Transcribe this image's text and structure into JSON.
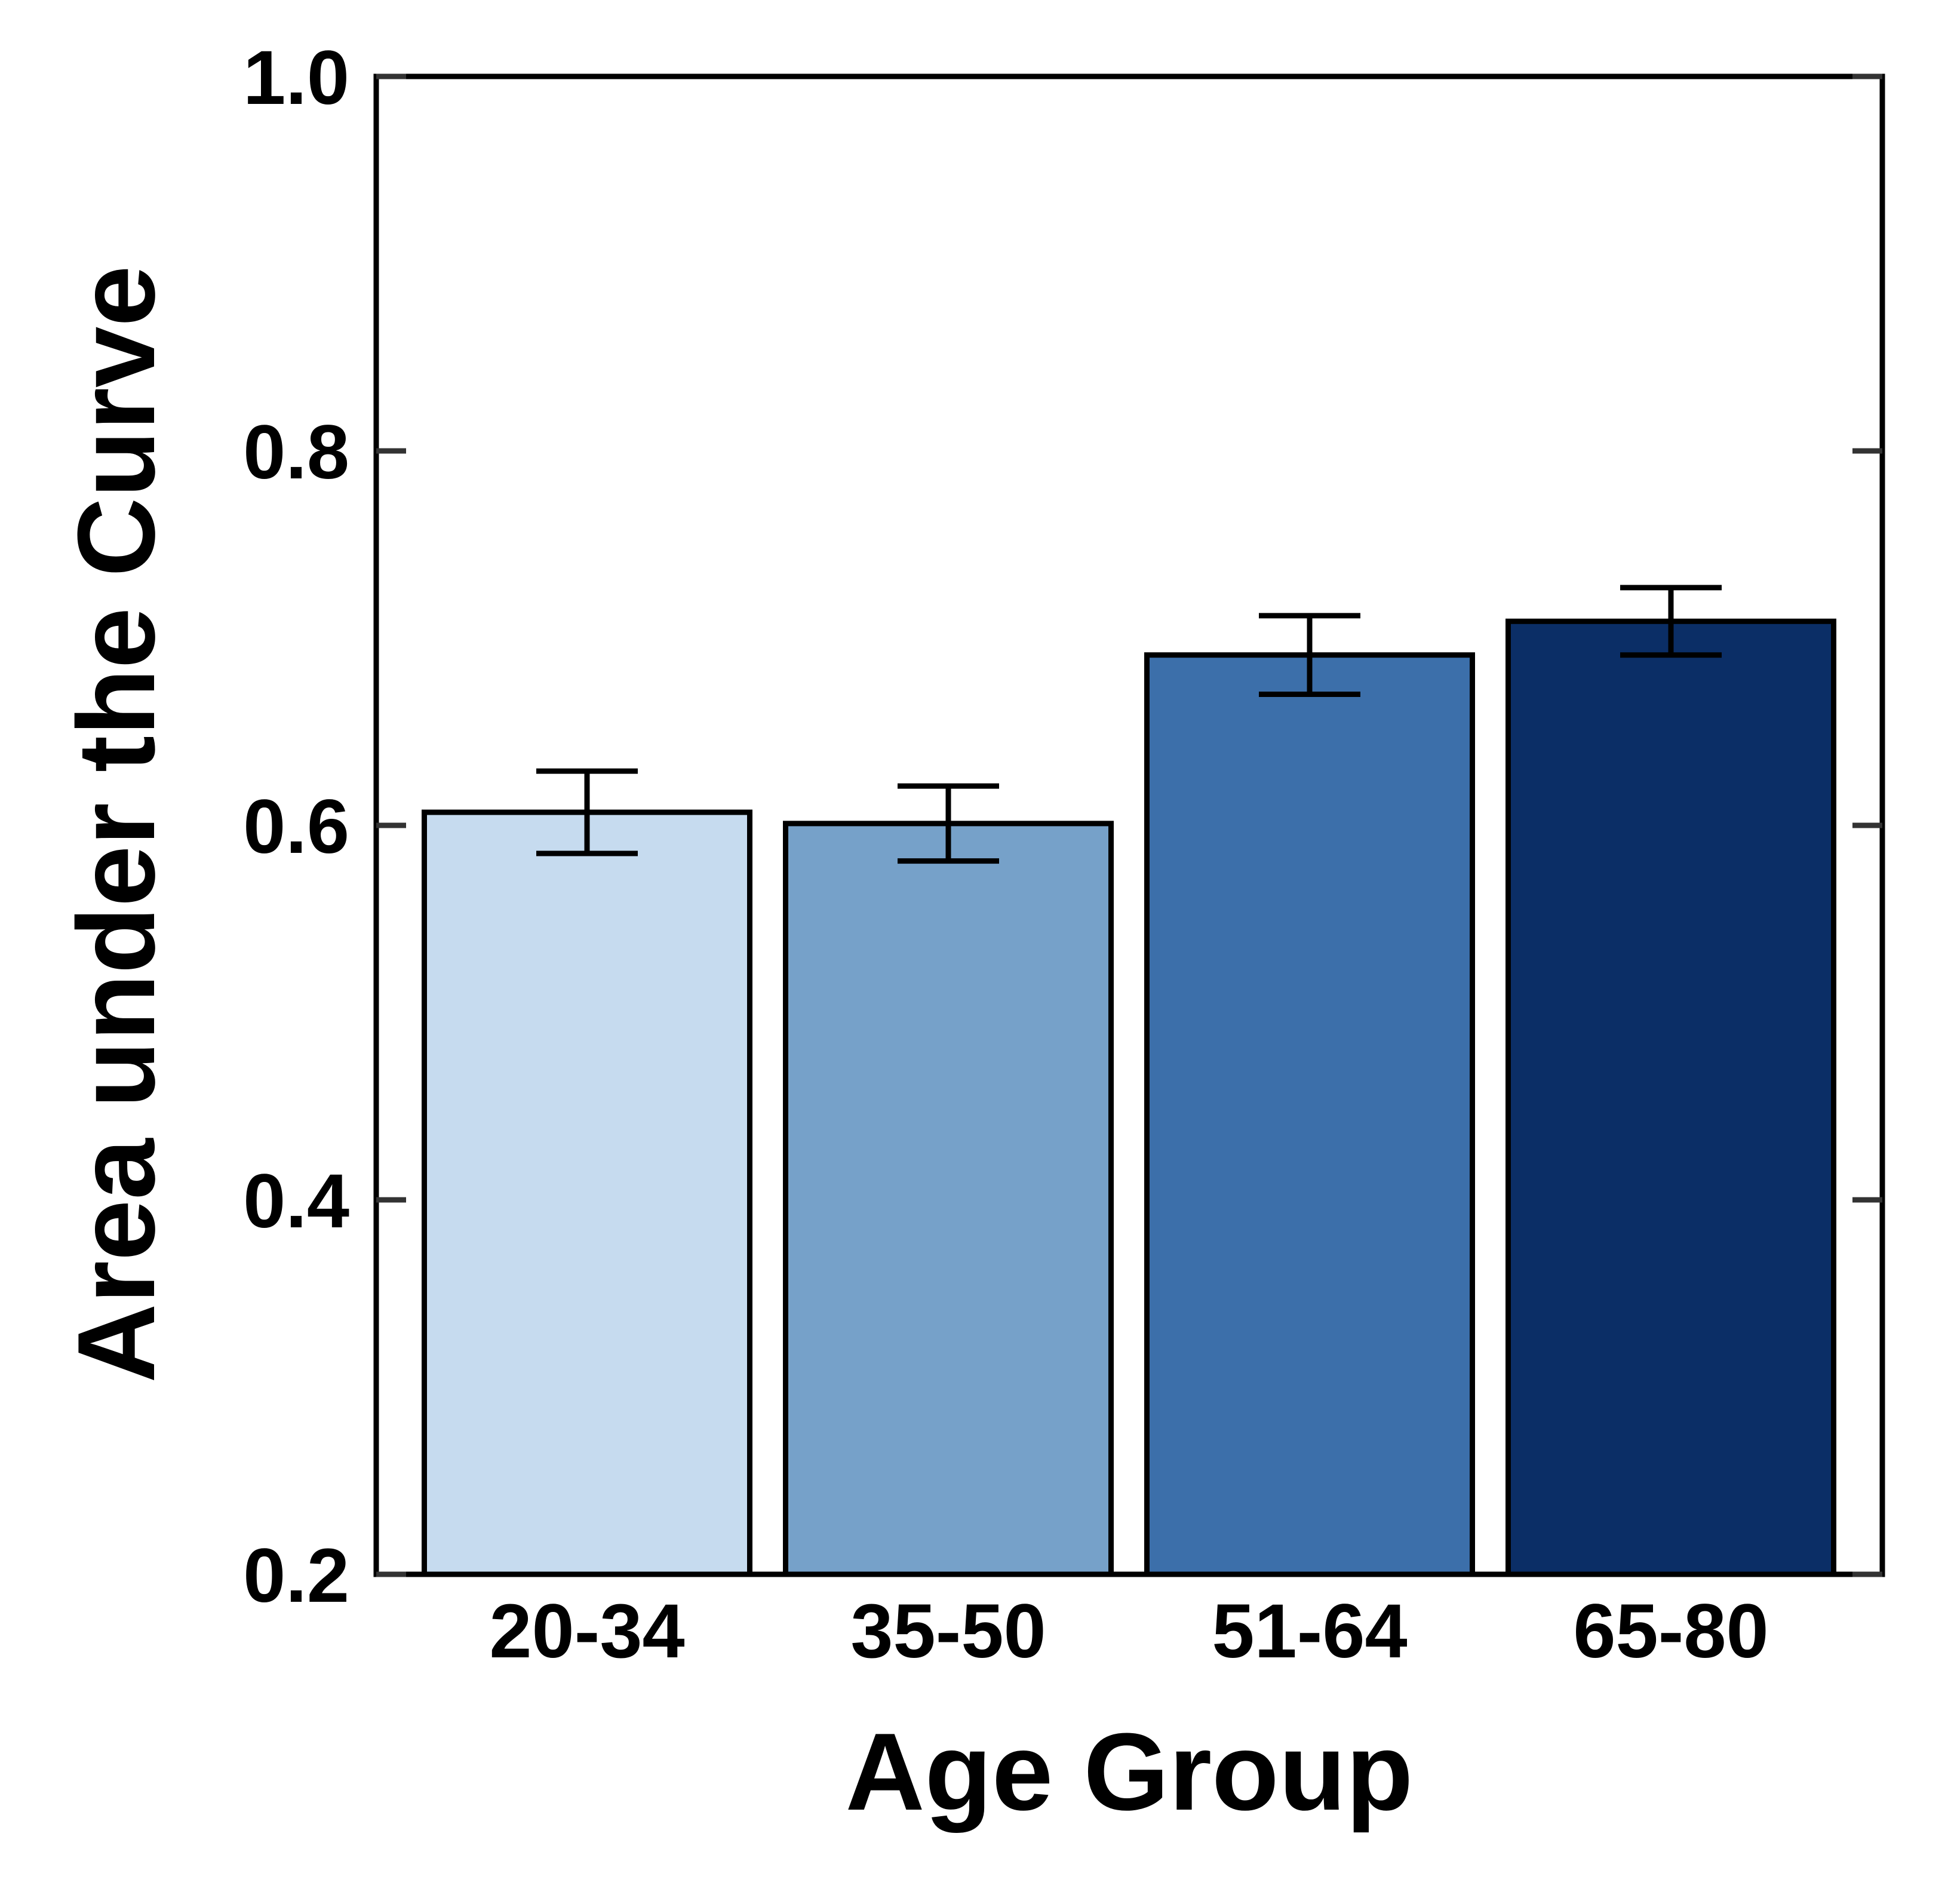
{
  "chart_data": {
    "type": "bar",
    "xlabel": "Age Group",
    "ylabel": "Area under the Curve",
    "categories": [
      "20-34",
      "35-50",
      "51-64",
      "65-80"
    ],
    "values": [
      0.607,
      0.601,
      0.691,
      0.709
    ],
    "error": [
      0.022,
      0.02,
      0.021,
      0.018
    ],
    "ylim": [
      0.2,
      1.0
    ],
    "yticks": [
      "0.2",
      "0.4",
      "0.6",
      "0.8",
      "1.0"
    ],
    "bar_colors": [
      "#c6dbef",
      "#76a1c9",
      "#3c6faa",
      "#0b2e66"
    ],
    "grid": false,
    "legend": "none"
  }
}
